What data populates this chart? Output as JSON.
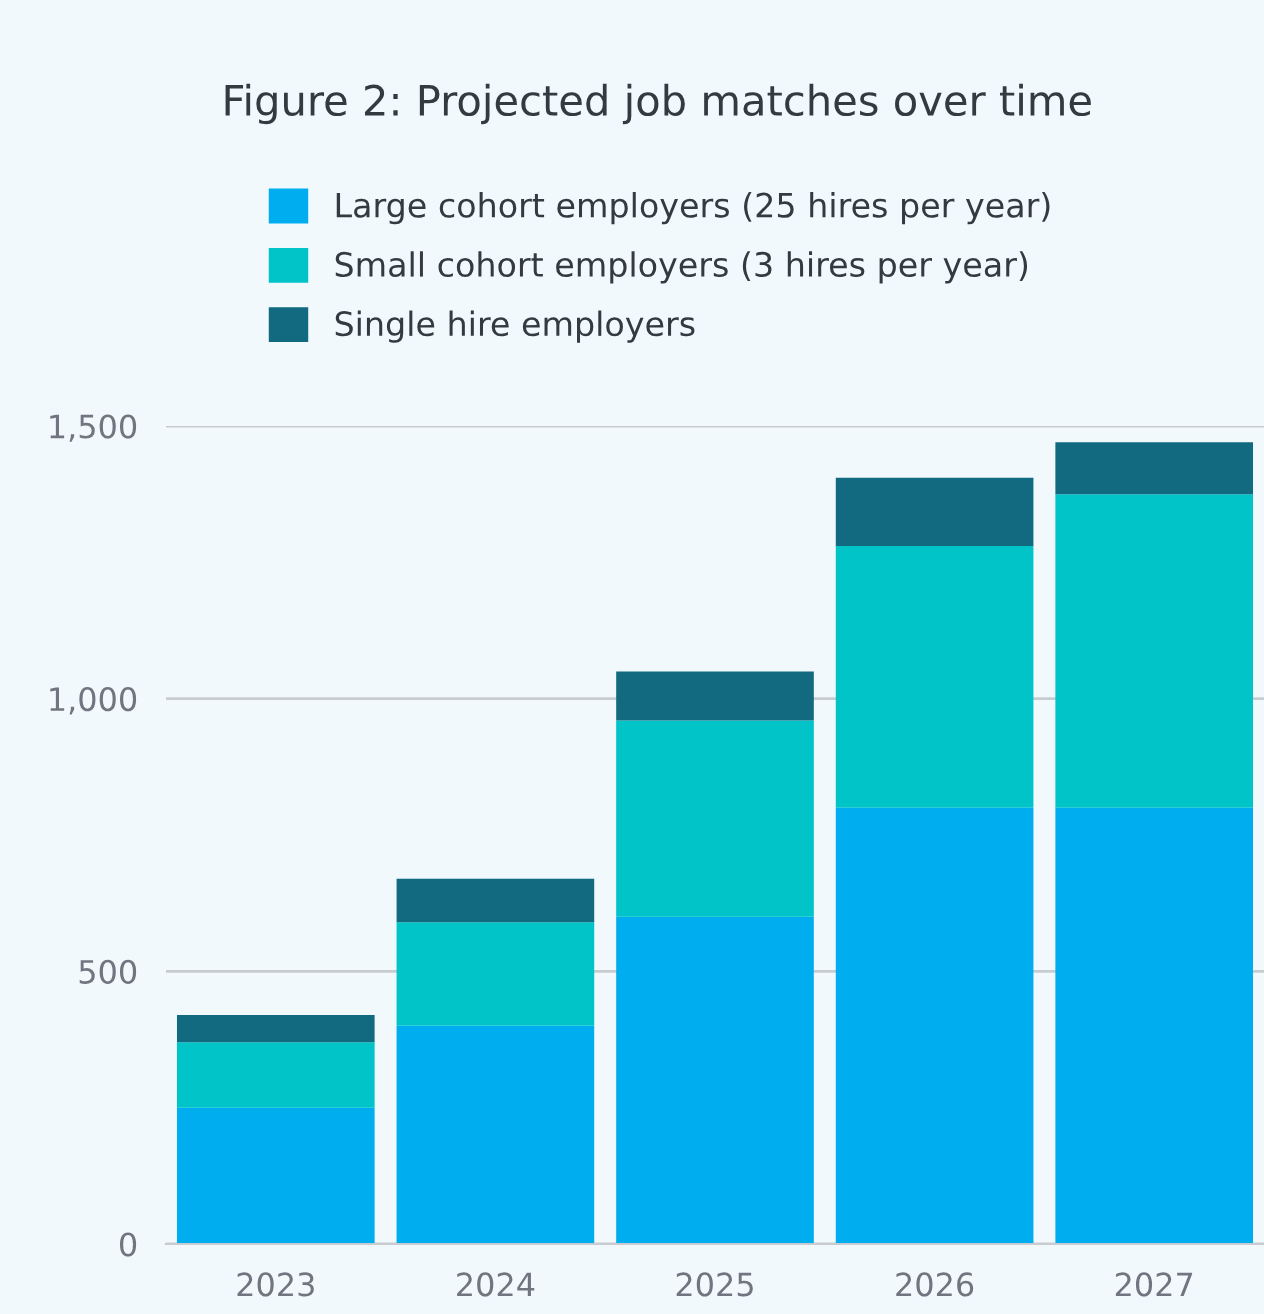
{
  "chart_data": {
    "type": "bar",
    "title": "Figure 2: Projected job matches over time",
    "categories": [
      "2023",
      "2024",
      "2025",
      "2026",
      "2027"
    ],
    "stacked": true,
    "series": [
      {
        "name": "Large cohort employers (25 hires per year)",
        "color": "#00aeef",
        "values": [
          250,
          400,
          600,
          800,
          800
        ]
      },
      {
        "name": "Small cohort employers (3 hires per year)",
        "color": "#00c4c8",
        "values": [
          120,
          190,
          360,
          480,
          575
        ]
      },
      {
        "name": "Single hire employers",
        "color": "#116a80",
        "values": [
          50,
          80,
          90,
          125,
          95
        ]
      }
    ],
    "ylim": [
      0,
      1500
    ],
    "yticks": [
      0,
      {
        "value": 500,
        "label": "500"
      },
      {
        "value": 1000,
        "label": "1,000"
      },
      {
        "value": 1500,
        "label": "1,500"
      }
    ],
    "grid": "y",
    "legend": "top"
  }
}
